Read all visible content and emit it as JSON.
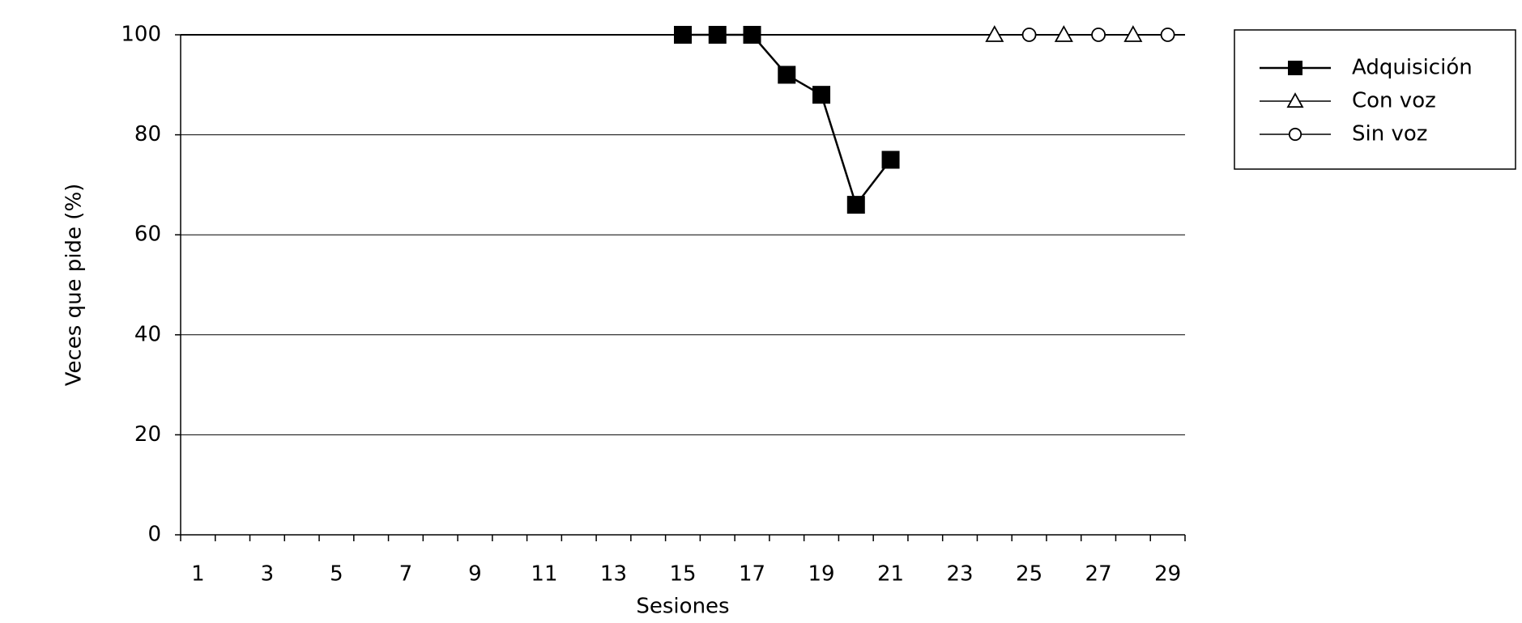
{
  "chart_data": {
    "type": "line",
    "y_label": "Veces que pide (%)",
    "x_label": "Sesiones",
    "categories": [
      "1",
      null,
      "3",
      null,
      "5",
      null,
      "7",
      null,
      "9",
      null,
      "11",
      null,
      "13",
      null,
      "15",
      null,
      "17",
      null,
      "19",
      null,
      "21",
      null,
      "23",
      null,
      "25",
      null,
      "27",
      null,
      "29"
    ],
    "series": [
      {
        "name": "Adquisición",
        "color": "#000000",
        "marker": "square",
        "values": [
          null,
          null,
          null,
          null,
          null,
          null,
          null,
          null,
          null,
          null,
          null,
          null,
          null,
          null,
          100,
          100,
          100,
          92,
          88,
          66,
          75,
          null,
          null,
          null,
          null,
          null,
          null,
          null,
          null
        ]
      },
      {
        "name": "Con voz",
        "color": "#000000",
        "marker": "triangle",
        "values": [
          null,
          null,
          null,
          null,
          null,
          null,
          null,
          null,
          null,
          null,
          null,
          null,
          null,
          null,
          null,
          null,
          null,
          null,
          null,
          null,
          null,
          null,
          null,
          100,
          null,
          100,
          null,
          100,
          null
        ]
      },
      {
        "name": "Sin voz",
        "color": "#000000",
        "marker": "circle",
        "values": [
          null,
          null,
          null,
          null,
          null,
          null,
          null,
          null,
          null,
          null,
          null,
          null,
          null,
          null,
          null,
          null,
          null,
          null,
          null,
          null,
          null,
          null,
          null,
          null,
          100,
          null,
          100,
          null,
          100
        ]
      }
    ],
    "ylim": [
      0,
      100
    ],
    "yticks": [
      0,
      20,
      40,
      60,
      80,
      100
    ],
    "grid": true,
    "legend": "right"
  }
}
